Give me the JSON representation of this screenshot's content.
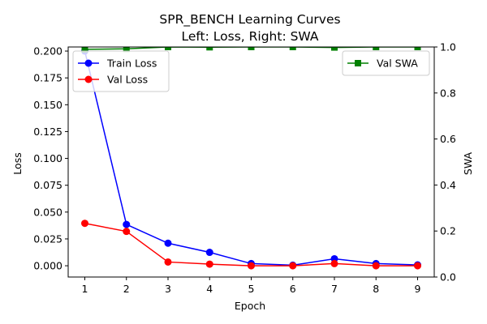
{
  "chart_data": {
    "type": "line",
    "title": "SPR_BENCH Learning Curves",
    "subtitle": "Left: Loss, Right: SWA",
    "xlabel": "Epoch",
    "ylabel_left": "Loss",
    "ylabel_right": "SWA",
    "x": [
      1,
      2,
      3,
      4,
      5,
      6,
      7,
      8,
      9
    ],
    "x_ticks": [
      "1",
      "2",
      "3",
      "4",
      "5",
      "6",
      "7",
      "8",
      "9"
    ],
    "xlim": [
      0.6,
      9.4
    ],
    "ylim_left": [
      -0.0105,
      0.2038
    ],
    "ylim_right": [
      0.0,
      1.0
    ],
    "yticks_left": [
      "0.000",
      "0.025",
      "0.050",
      "0.075",
      "0.100",
      "0.125",
      "0.150",
      "0.175",
      "0.200"
    ],
    "yticks_right": [
      "0.0",
      "0.2",
      "0.4",
      "0.6",
      "0.8",
      "1.0"
    ],
    "grid": false,
    "series": [
      {
        "name": "Train Loss",
        "axis": "left",
        "color": "#0000ff",
        "marker": "circle",
        "values": [
          0.2,
          0.0385,
          0.021,
          0.0125,
          0.002,
          0.0005,
          0.0065,
          0.002,
          0.0008
        ]
      },
      {
        "name": "Val Loss",
        "axis": "left",
        "color": "#ff0000",
        "marker": "circle",
        "values": [
          0.0395,
          0.032,
          0.0035,
          0.0015,
          0.0,
          0.0,
          0.002,
          0.0,
          0.0
        ]
      },
      {
        "name": "Val SWA",
        "axis": "right",
        "color": "#008000",
        "marker": "square",
        "values": [
          0.99,
          0.992,
          1.0,
          0.999,
          1.0,
          1.0,
          0.998,
          1.0,
          1.0
        ]
      }
    ],
    "legend_left": {
      "position": "upper-left",
      "entries": [
        "Train Loss",
        "Val Loss"
      ]
    },
    "legend_right": {
      "position": "upper-right",
      "entries": [
        "Val SWA"
      ]
    }
  }
}
